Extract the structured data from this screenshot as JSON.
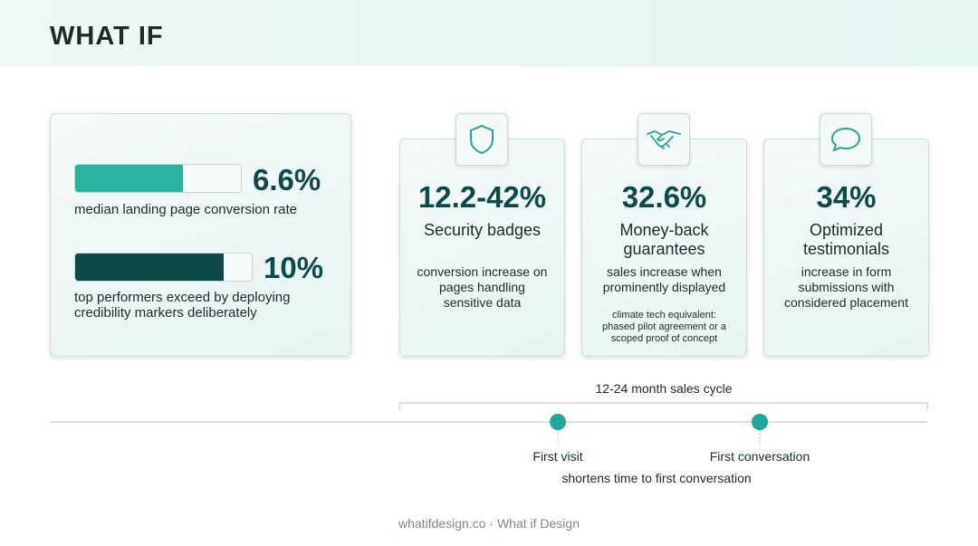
{
  "header": {
    "logo": "WHAT IF"
  },
  "summary": {
    "stats": [
      {
        "value": "6.6%",
        "label": "median landing page conversion rate"
      },
      {
        "value": "10%",
        "label": "top performers exceed by deploying credibility markers deliberately"
      }
    ]
  },
  "cards": [
    {
      "value": "12.2-42%",
      "title": "Security badges",
      "description": "conversion increase on pages handling sensitive data"
    },
    {
      "value": "32.6%",
      "title": "Money-back guarantees",
      "description": "sales increase when prominently displayed",
      "note": "climate tech equivalent: phased pilot agreement or a scoped proof of concept"
    },
    {
      "value": "34%",
      "title": "Optimized testimonials",
      "description": "increase in form submissions with considered placement"
    }
  ],
  "timeline": {
    "span_label": "12-24 month sales cycle",
    "milestones": [
      "First visit",
      "First conversation"
    ],
    "caption": "shortens time to first conversation"
  },
  "footer": {
    "text": "whatifdesign.co · What if Design"
  }
}
